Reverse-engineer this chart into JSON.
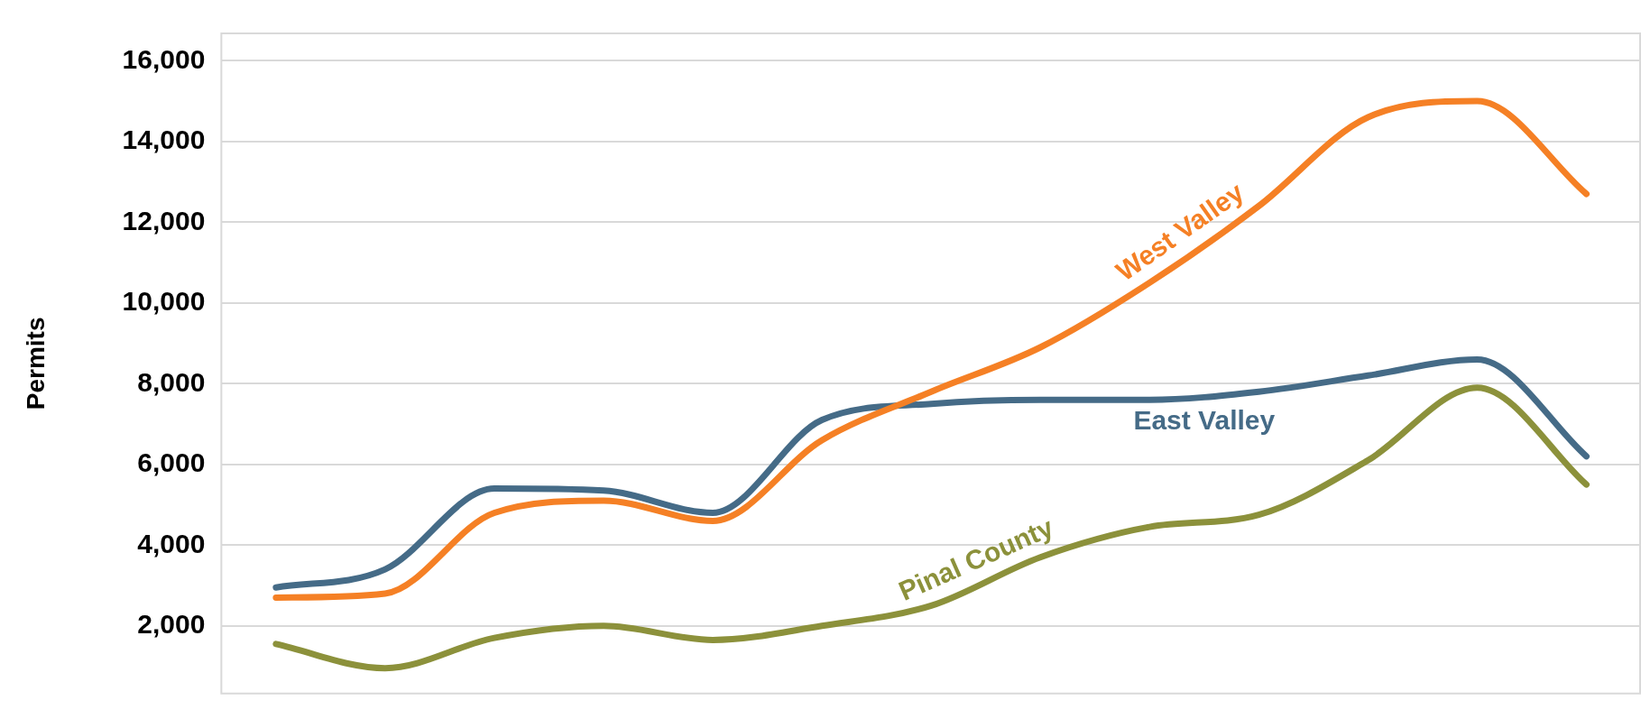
{
  "chart_data": {
    "type": "line",
    "ylabel": "Permits",
    "categories": [
      null,
      null,
      null,
      null,
      null,
      null,
      null,
      null,
      null,
      null,
      null,
      null,
      null
    ],
    "series": [
      {
        "name": "West Valley",
        "color": "#f58025",
        "values": [
          2700,
          2800,
          4800,
          5100,
          4600,
          6600,
          7800,
          8900,
          10500,
          12400,
          14600,
          15000,
          12700
        ]
      },
      {
        "name": "East Valley",
        "color": "#456b87",
        "values": [
          2950,
          3400,
          5400,
          5350,
          4800,
          7100,
          7500,
          7600,
          7600,
          7800,
          8200,
          8600,
          6200
        ]
      },
      {
        "name": "Pinal County",
        "color": "#8c913b",
        "values": [
          1550,
          950,
          1700,
          2000,
          1650,
          2000,
          2500,
          3700,
          4450,
          4750,
          6100,
          7900,
          5500
        ]
      }
    ],
    "ylim": [
      300,
      16700
    ],
    "yticks": [
      {
        "value": 2000,
        "label": "2,000"
      },
      {
        "value": 4000,
        "label": "4,000"
      },
      {
        "value": 6000,
        "label": "6,000"
      },
      {
        "value": 8000,
        "label": "8,000"
      },
      {
        "value": 10000,
        "label": "10,000"
      },
      {
        "value": 12000,
        "label": "12,000"
      },
      {
        "value": 14000,
        "label": "14,000"
      },
      {
        "value": 16000,
        "label": "16,000"
      }
    ],
    "grid": "y",
    "legend": false,
    "marker": "none",
    "line_style": "solid"
  }
}
